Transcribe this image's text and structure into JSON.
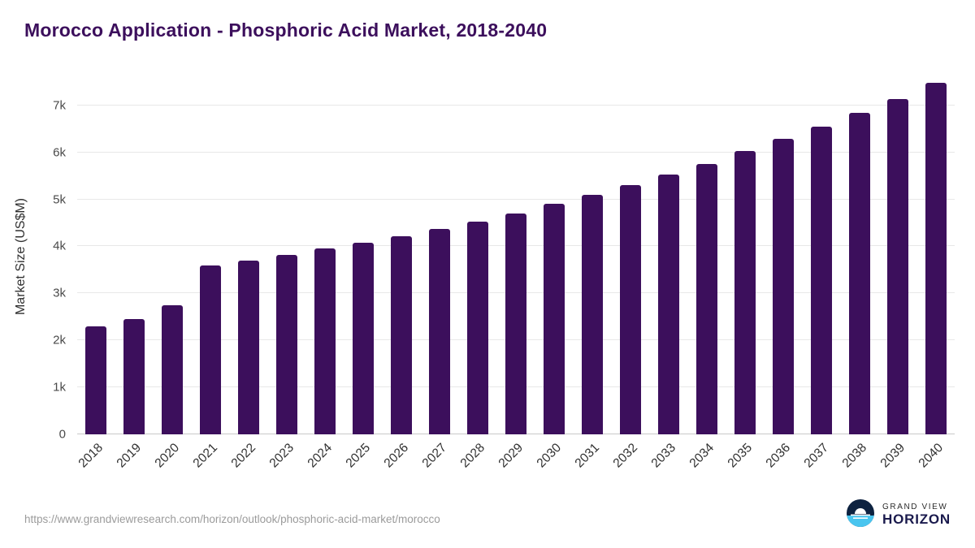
{
  "header": {
    "title": "Morocco Application - Phosphoric Acid Market, 2018-2040"
  },
  "chart_data": {
    "type": "bar",
    "title": "Morocco Application - Phosphoric Acid Market, 2018-2040",
    "xlabel": "",
    "ylabel": "Market Size (US$M)",
    "categories": [
      "2018",
      "2019",
      "2020",
      "2021",
      "2022",
      "2023",
      "2024",
      "2025",
      "2026",
      "2027",
      "2028",
      "2029",
      "2030",
      "2031",
      "2032",
      "2033",
      "2034",
      "2035",
      "2036",
      "2037",
      "2038",
      "2039",
      "2040"
    ],
    "values": [
      2290,
      2450,
      2750,
      3600,
      3700,
      3820,
      3950,
      4070,
      4220,
      4370,
      4530,
      4700,
      4900,
      5090,
      5310,
      5530,
      5760,
      6030,
      6290,
      6550,
      6840,
      7140,
      7480
    ],
    "ylim": [
      0,
      7600
    ],
    "ytick_values": [
      0,
      1000,
      2000,
      3000,
      4000,
      5000,
      6000,
      7000
    ],
    "ytick_labels": [
      "0",
      "1k",
      "2k",
      "3k",
      "4k",
      "5k",
      "6k",
      "7k"
    ],
    "bar_color": "#3c0f5c",
    "grid": true,
    "legend": "none"
  },
  "footer": {
    "source_url": "https://www.grandviewresearch.com/horizon/outlook/phosphoric-acid-market/morocco",
    "logo_line1": "GRAND VIEW",
    "logo_line2": "HORIZON"
  }
}
